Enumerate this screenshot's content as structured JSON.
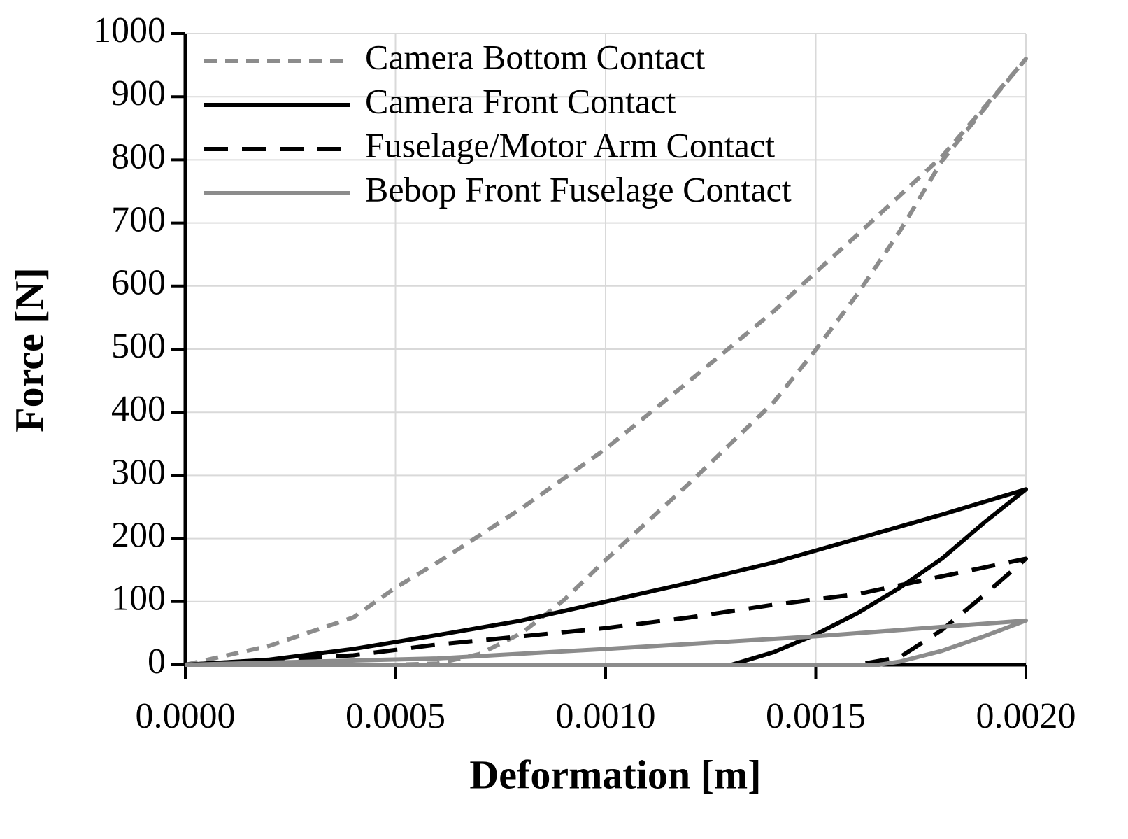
{
  "chart_data": {
    "type": "line",
    "xlabel": "Deformation [m]",
    "ylabel": "Force [N]",
    "xlim": [
      0,
      0.002
    ],
    "ylim": [
      0,
      1000
    ],
    "xticks": [
      {
        "value": 0,
        "label": "0.0000"
      },
      {
        "value": 0.0005,
        "label": "0.0005"
      },
      {
        "value": 0.001,
        "label": "0.0010"
      },
      {
        "value": 0.0015,
        "label": "0.0015"
      },
      {
        "value": 0.002,
        "label": "0.0020"
      }
    ],
    "yticks": [
      0,
      100,
      200,
      300,
      400,
      500,
      600,
      700,
      800,
      900,
      1000
    ],
    "grid": true,
    "legend": "upper-left",
    "series": [
      {
        "name": "Camera Bottom Contact",
        "color": "#8c8c8c",
        "dash": "short",
        "x": [
          0,
          0.0002,
          0.0004,
          0.0005,
          0.0006,
          0.0008,
          0.001,
          0.0012,
          0.0014,
          0.0015,
          0.0016,
          0.0018,
          0.002,
          0.0019,
          0.0018,
          0.0017,
          0.0016,
          0.0015,
          0.0014,
          0.0012,
          0.001,
          0.0009,
          0.0008,
          0.0007,
          0.0006,
          0.0005,
          0
        ],
        "values": [
          0,
          30,
          75,
          122,
          162,
          248,
          342,
          450,
          560,
          622,
          682,
          805,
          960,
          880,
          798,
          687,
          588,
          499,
          416,
          288,
          166,
          102,
          50,
          17,
          2,
          0,
          0
        ]
      },
      {
        "name": "Camera Front Contact",
        "color": "#000000",
        "dash": "solid",
        "x": [
          0,
          0.0002,
          0.0004,
          0.0006,
          0.0008,
          0.001,
          0.0012,
          0.0014,
          0.0016,
          0.0018,
          0.002,
          0.0019,
          0.0018,
          0.0017,
          0.0016,
          0.0015,
          0.0014,
          0.0013,
          0
        ],
        "values": [
          0,
          8,
          25,
          47,
          70,
          100,
          130,
          162,
          200,
          238,
          278,
          225,
          168,
          122,
          82,
          48,
          20,
          0,
          0
        ]
      },
      {
        "name": "Fuselage/Motor Arm Contact",
        "color": "#000000",
        "dash": "long",
        "x": [
          0,
          0.0004,
          0.0006,
          0.0008,
          0.001,
          0.0012,
          0.0014,
          0.0016,
          0.0018,
          0.002,
          0.0019,
          0.0018,
          0.0017,
          0.0016,
          0
        ],
        "values": [
          0,
          15,
          32,
          45,
          58,
          75,
          95,
          112,
          140,
          168,
          110,
          55,
          12,
          0,
          0
        ]
      },
      {
        "name": "Bebop Front Fuselage Contact",
        "color": "#8c8c8c",
        "dash": "solid",
        "x": [
          0,
          0.0006,
          0.001,
          0.0015,
          0.002,
          0.0019,
          0.0018,
          0.0017,
          0.00165,
          0
        ],
        "values": [
          0,
          10,
          25,
          45,
          70,
          45,
          22,
          5,
          0,
          0
        ]
      }
    ]
  }
}
